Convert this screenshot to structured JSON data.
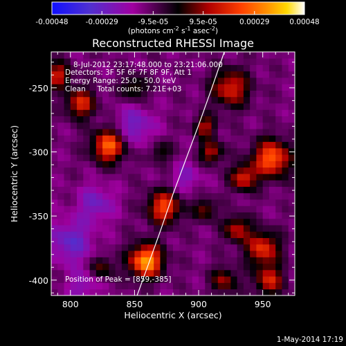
{
  "colorbar": {
    "tick_labels": [
      "-0.00048",
      "-0.00029",
      "-9.5e-05",
      "9.5e-05",
      "0.00029",
      "0.00048"
    ],
    "tick_values": [
      -0.00048,
      -0.00029,
      -9.5e-05,
      9.5e-05,
      0.00029,
      0.00048
    ],
    "range": [
      -0.00048,
      0.00048
    ],
    "unit_text": "(photons cm",
    "unit_exp1": "-2",
    "unit_mid": " s",
    "unit_exp2": "-1",
    "unit_mid2": " asec",
    "unit_exp3": "-2",
    "unit_close": ")",
    "colors": [
      "#1010ff",
      "#5030d0",
      "#a000a0",
      "#000000",
      "#b00000",
      "#ff4000",
      "#ff9000",
      "#ffd800",
      "#ffffff"
    ]
  },
  "chart_data": {
    "type": "heatmap",
    "title": "Reconstructed RHESSI Image",
    "xlabel": "Heliocentric X (arcsec)",
    "ylabel": "Heliocentric Y (arcsec)",
    "xlim": [
      785,
      975
    ],
    "ylim": [
      -412,
      -222
    ],
    "x_ticks": [
      800,
      850,
      900,
      950
    ],
    "x_tick_labels": [
      "800",
      "850",
      "900",
      "950"
    ],
    "y_ticks": [
      -250,
      -300,
      -350,
      -400
    ],
    "y_tick_labels": [
      "-250",
      "-300",
      "-350",
      "-400"
    ],
    "annotations": [
      "8-Jul-2012 23:17:48.000 to 23:21:06.000",
      "Detectors: 3F 5F 6F 7F 8F 9F, Att 1",
      "Energy Range: 25.0 - 50.0 keV",
      "Clean     Total counts: 7.21E+03"
    ],
    "peak_label": "Position of Peak = [859,-385]",
    "peak": [
      859,
      -385
    ],
    "limb_curve": {
      "x": [
        852,
        860,
        870,
        880,
        890,
        900,
        910,
        920
      ],
      "y": [
        -412,
        -390,
        -362,
        -333,
        -306,
        -279,
        -251,
        -222
      ]
    },
    "blobs": [
      {
        "x": 859,
        "y": -385,
        "amp": 0.00048,
        "r": 9
      },
      {
        "x": 830,
        "y": -295,
        "amp": 0.0004,
        "r": 9
      },
      {
        "x": 873,
        "y": -343,
        "amp": 0.00035,
        "r": 9
      },
      {
        "x": 808,
        "y": -262,
        "amp": 0.0003,
        "r": 8
      },
      {
        "x": 790,
        "y": -240,
        "amp": 0.00028,
        "r": 7
      },
      {
        "x": 957,
        "y": -305,
        "amp": 0.0004,
        "r": 10
      },
      {
        "x": 925,
        "y": -250,
        "amp": 0.0003,
        "r": 10
      },
      {
        "x": 935,
        "y": -320,
        "amp": 0.0003,
        "r": 7
      },
      {
        "x": 910,
        "y": -300,
        "amp": 0.00026,
        "r": 6
      },
      {
        "x": 905,
        "y": -280,
        "amp": 0.00024,
        "r": 6
      },
      {
        "x": 950,
        "y": -375,
        "amp": 0.00032,
        "r": 9
      },
      {
        "x": 930,
        "y": -360,
        "amp": 0.00026,
        "r": 7
      },
      {
        "x": 955,
        "y": -400,
        "amp": 0.00028,
        "r": 8
      },
      {
        "x": 920,
        "y": -400,
        "amp": 0.00022,
        "r": 7
      },
      {
        "x": 825,
        "y": -390,
        "amp": 0.00018,
        "r": 6
      },
      {
        "x": 850,
        "y": -250,
        "amp": 0.00018,
        "r": 7
      },
      {
        "x": 870,
        "y": -300,
        "amp": 0.00015,
        "r": 6
      },
      {
        "x": 905,
        "y": -345,
        "amp": 0.0002,
        "r": 6
      },
      {
        "x": 820,
        "y": -340,
        "amp": -0.00015,
        "r": 10
      },
      {
        "x": 800,
        "y": -370,
        "amp": -0.00018,
        "r": 12
      },
      {
        "x": 850,
        "y": -280,
        "amp": -0.00016,
        "r": 11
      },
      {
        "x": 890,
        "y": -320,
        "amp": -0.00012,
        "r": 8
      },
      {
        "x": 810,
        "y": -405,
        "amp": -0.00012,
        "r": 8
      }
    ]
  },
  "footer": {
    "date": "1-May-2014 17:19"
  }
}
